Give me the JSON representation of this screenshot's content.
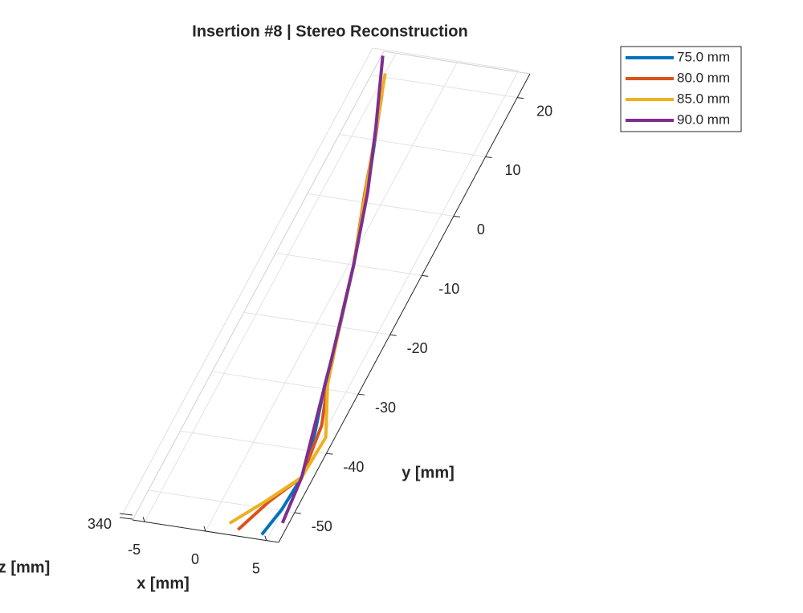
{
  "chart_data": {
    "type": "line3d",
    "title": "Insertion #8 | Stereo Reconstruction",
    "xlabel": "x [mm]",
    "ylabel": "y [mm]",
    "zlabel": "z [mm]",
    "xlim": [
      -6,
      6
    ],
    "ylim": [
      -55,
      24
    ],
    "xticks": [
      -5,
      0,
      5
    ],
    "yticks": [
      -50,
      -40,
      -30,
      -20,
      -10,
      0,
      10,
      20
    ],
    "zticks": [
      340
    ],
    "grid": true,
    "legend_position": "outside-upper-right",
    "series": [
      {
        "name": "75.0 mm",
        "color": "#0072bd",
        "x": [
          4.4,
          4.9,
          5.1,
          4.3,
          3.1,
          2.1,
          0.4,
          -1.3,
          -3.5
        ],
        "y": [
          -54.2,
          -49.8,
          -44.3,
          -37.1,
          -29.4,
          -21.6,
          -10.0,
          0.4,
          12.3
        ]
      },
      {
        "name": "80.0 mm",
        "color": "#d95319",
        "x": [
          2.4,
          3.6,
          5.1,
          4.5,
          2.8,
          0.4,
          -1.7,
          -3.2,
          -4.4
        ],
        "y": [
          -54.0,
          -48.9,
          -44.3,
          -35.7,
          -26.8,
          -10.0,
          1.6,
          10.6,
          17.3
        ]
      },
      {
        "name": "85.0 mm",
        "color": "#edb120",
        "x": [
          1.5,
          3.3,
          5.1,
          5.3,
          3.3,
          1.7,
          0.4,
          -2.1,
          -3.9,
          -5.0
        ],
        "y": [
          -53.2,
          -49.0,
          -44.3,
          -37.5,
          -29.3,
          -19.0,
          -10.0,
          4.2,
          14.4,
          20.6
        ]
      },
      {
        "name": "90.0 mm",
        "color": "#7e2f8e",
        "x": [
          5.5,
          5.1,
          3.8,
          2.6,
          0.4,
          -1.5,
          -3.5,
          -5.9
        ],
        "y": [
          -51.9,
          -44.3,
          -34.6,
          -25.5,
          -10.0,
          1.7,
          11.9,
          23.3
        ]
      }
    ]
  }
}
